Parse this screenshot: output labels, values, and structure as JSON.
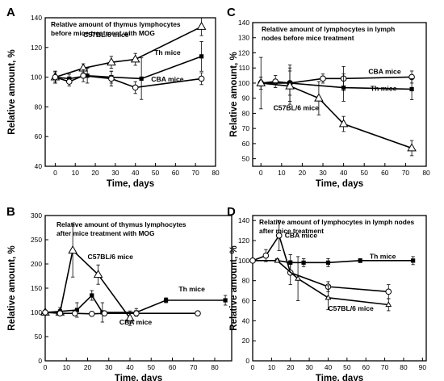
{
  "chart_data": [
    {
      "panel": "A",
      "type": "line",
      "title_lines": [
        "Relative  amount of thymus lymphocytes",
        "before mice treatment with MOG"
      ],
      "xlabel": "Time, days",
      "ylabel": "Relative amount, %",
      "xlim": [
        -5,
        80
      ],
      "ylim": [
        40,
        140
      ],
      "xticks": [
        0,
        10,
        20,
        30,
        40,
        50,
        60,
        70,
        80
      ],
      "yticks": [
        40,
        60,
        80,
        100,
        120,
        140
      ],
      "series": [
        {
          "name": "C57BL/6 mice",
          "marker": "triangle-open",
          "x": [
            0,
            14,
            28,
            40,
            73
          ],
          "y": [
            100,
            106,
            110,
            112,
            134
          ],
          "err": [
            4,
            3,
            4,
            4,
            6
          ]
        },
        {
          "name": "Th mice",
          "marker": "square-filled",
          "x": [
            0,
            7,
            16,
            28,
            43,
            73
          ],
          "y": [
            100,
            99,
            101,
            100,
            99,
            114
          ],
          "err": [
            4,
            3,
            5,
            4,
            14,
            10
          ]
        },
        {
          "name": "CBA mice",
          "marker": "circle-open",
          "x": [
            0,
            7,
            14,
            28,
            40,
            73
          ],
          "y": [
            100,
            97,
            101,
            99,
            93,
            99
          ],
          "err": [
            3,
            3,
            4,
            5,
            4,
            4
          ]
        }
      ]
    },
    {
      "panel": "B",
      "type": "line",
      "title_lines": [
        "Relative  amount of thymus  lymphocytes",
        "after mice treatment with MOG"
      ],
      "xlabel": "Time, days",
      "ylabel": "Relative amount, %",
      "xlim": [
        0,
        88
      ],
      "ylim": [
        0,
        300
      ],
      "xticks": [
        0,
        10,
        20,
        30,
        40,
        50,
        60,
        70,
        80
      ],
      "yticks": [
        0,
        50,
        100,
        150,
        200,
        250,
        300
      ],
      "series": [
        {
          "name": "C57BL/6 mice",
          "marker": "triangle-open",
          "x": [
            0,
            7,
            13,
            25,
            40
          ],
          "y": [
            100,
            100,
            228,
            178,
            88
          ],
          "err": [
            0,
            5,
            55,
            20,
            15
          ]
        },
        {
          "name": "Th mice",
          "marker": "square-filled",
          "x": [
            0,
            7,
            15,
            22,
            27,
            43,
            57,
            85
          ],
          "y": [
            100,
            102,
            105,
            135,
            100,
            100,
            125,
            125
          ],
          "err": [
            0,
            8,
            15,
            10,
            20,
            8,
            5,
            10
          ]
        },
        {
          "name": "CBA mice",
          "marker": "circle-open",
          "x": [
            0,
            7,
            14,
            22,
            28,
            43,
            72
          ],
          "y": [
            100,
            98,
            98,
            97,
            98,
            98,
            98
          ],
          "err": [
            0,
            4,
            4,
            4,
            4,
            4,
            3
          ]
        }
      ]
    },
    {
      "panel": "C",
      "type": "line",
      "title_lines": [
        "Relative amount of lymphocytes in lymph",
        "nodes before mice treatment"
      ],
      "xlabel": "Time, days",
      "ylabel": "Relative amount, %",
      "xlim": [
        -4,
        80
      ],
      "ylim": [
        45,
        140
      ],
      "xticks": [
        0,
        10,
        20,
        30,
        40,
        50,
        60,
        70,
        80
      ],
      "yticks": [
        50,
        60,
        70,
        80,
        90,
        100,
        110,
        120,
        130,
        140
      ],
      "series": [
        {
          "name": "CBA mice",
          "marker": "circle-open",
          "x": [
            0,
            7,
            14,
            30,
            40,
            73
          ],
          "y": [
            100,
            101,
            100,
            103,
            103,
            104
          ],
          "err": [
            17,
            4,
            8,
            3,
            8,
            4
          ]
        },
        {
          "name": "Th mice",
          "marker": "square-filled",
          "x": [
            0,
            14,
            40,
            73
          ],
          "y": [
            100,
            100,
            97,
            96
          ],
          "err": [
            2,
            12,
            9,
            7
          ]
        },
        {
          "name": "C57BL/6 mice",
          "marker": "triangle-open",
          "x": [
            0,
            14,
            28,
            40,
            73
          ],
          "y": [
            100,
            98,
            90,
            73,
            57
          ],
          "err": [
            4,
            12,
            11,
            5,
            5
          ]
        }
      ]
    },
    {
      "panel": "D",
      "type": "line",
      "title_lines": [
        "Relative amount of lymphocytes in lymph nodes",
        "after mice treatment"
      ],
      "xlabel": "Time, days",
      "ylabel": "Relative amount, %",
      "xlim": [
        0,
        92
      ],
      "ylim": [
        0,
        145
      ],
      "xticks": [
        0,
        10,
        20,
        30,
        40,
        50,
        60,
        70,
        80,
        90
      ],
      "yticks": [
        0,
        20,
        40,
        60,
        80,
        100,
        120,
        140
      ],
      "series": [
        {
          "name": "Th mice",
          "marker": "square-filled",
          "x": [
            0,
            13,
            20,
            27,
            40,
            57,
            85
          ],
          "y": [
            100,
            100,
            98,
            98,
            98,
            100,
            100
          ],
          "err": [
            0,
            0,
            8,
            4,
            4,
            2,
            4
          ]
        },
        {
          "name": "CBA mice",
          "marker": "circle-open",
          "x": [
            0,
            7,
            14,
            20,
            40,
            72
          ],
          "y": [
            100,
            105,
            125,
            88,
            74,
            69
          ],
          "err": [
            0,
            6,
            15,
            12,
            5,
            7
          ]
        },
        {
          "name": "C57BL/6 mice",
          "marker": "triangle-open-small",
          "x": [
            13,
            24,
            40,
            72
          ],
          "y": [
            100,
            82,
            63,
            56
          ],
          "err": [
            0,
            22,
            12,
            6
          ]
        }
      ]
    }
  ]
}
